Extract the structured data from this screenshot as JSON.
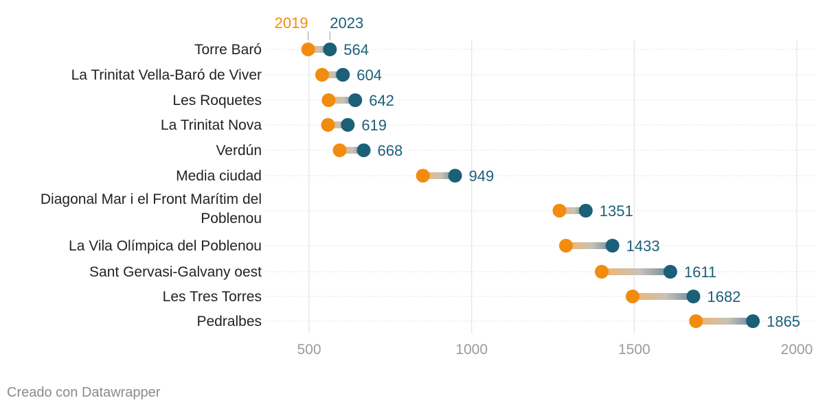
{
  "chart_data": {
    "type": "dumbbell",
    "title": "",
    "xlabel": "",
    "ylabel": "",
    "xlim": [
      400,
      2000
    ],
    "xticks": [
      500,
      1000,
      1500,
      2000
    ],
    "series": [
      {
        "name": "2019",
        "color": "#f28c0f"
      },
      {
        "name": "2023",
        "color": "#1b5f78"
      }
    ],
    "rows": [
      {
        "label": [
          "Torre Baró"
        ],
        "v2019": 497,
        "v2023": 564,
        "value_label": "564"
      },
      {
        "label": [
          "La Trinitat Vella-Baró de Viver"
        ],
        "v2019": 540,
        "v2023": 604,
        "value_label": "604"
      },
      {
        "label": [
          "Les Roquetes"
        ],
        "v2019": 560,
        "v2023": 642,
        "value_label": "642"
      },
      {
        "label": [
          "La Trinitat Nova"
        ],
        "v2019": 558,
        "v2023": 619,
        "value_label": "619"
      },
      {
        "label": [
          "Verdún"
        ],
        "v2019": 594,
        "v2023": 668,
        "value_label": "668"
      },
      {
        "label": [
          "Media ciudad"
        ],
        "v2019": 850,
        "v2023": 949,
        "value_label": "949"
      },
      {
        "label": [
          "Diagonal Mar i el Front Marítim del",
          "Poblenou"
        ],
        "v2019": 1270,
        "v2023": 1351,
        "value_label": "1351"
      },
      {
        "label": [
          "La Vila Olímpica del Poblenou"
        ],
        "v2019": 1290,
        "v2023": 1433,
        "value_label": "1433"
      },
      {
        "label": [
          "Sant Gervasi-Galvany oest"
        ],
        "v2019": 1400,
        "v2023": 1611,
        "value_label": "1611"
      },
      {
        "label": [
          "Les Tres Torres"
        ],
        "v2019": 1495,
        "v2023": 1682,
        "value_label": "1682"
      },
      {
        "label": [
          "Pedralbes"
        ],
        "v2019": 1690,
        "v2023": 1865,
        "value_label": "1865"
      }
    ],
    "legend": {
      "left": "2019",
      "right": "2023"
    }
  },
  "footer": "Creado con Datawrapper"
}
